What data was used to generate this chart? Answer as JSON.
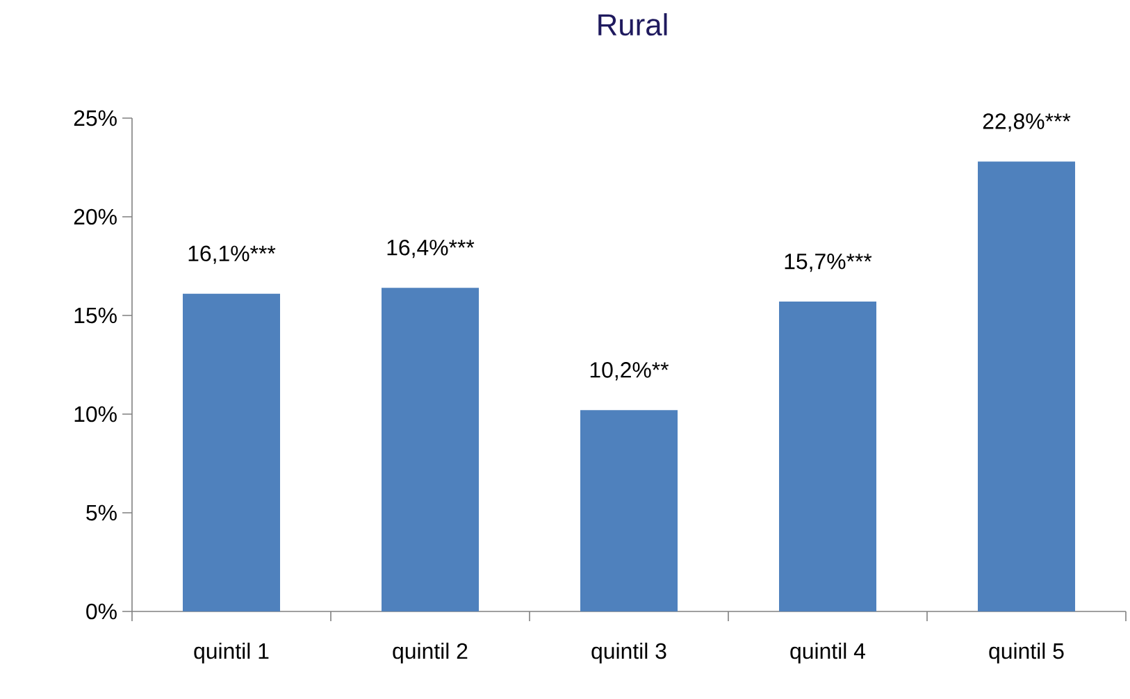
{
  "chart_data": {
    "type": "bar",
    "title": "Rural",
    "categories": [
      "quintil 1",
      "quintil 2",
      "quintil 3",
      "quintil 4",
      "quintil 5"
    ],
    "values": [
      16.1,
      16.4,
      10.2,
      15.7,
      22.8
    ],
    "value_labels": [
      "16,1%***",
      "16,4%***",
      "10,2%**",
      "15,7%***",
      "22,8%***"
    ],
    "color": "#4f81bd",
    "ylim": [
      0,
      25
    ],
    "yticks": [
      {
        "value": 0,
        "label": "0%"
      },
      {
        "value": 5,
        "label": "5%"
      },
      {
        "value": 10,
        "label": "10%"
      },
      {
        "value": 15,
        "label": "15%"
      },
      {
        "value": 20,
        "label": "20%"
      },
      {
        "value": 25,
        "label": "25%"
      }
    ]
  }
}
